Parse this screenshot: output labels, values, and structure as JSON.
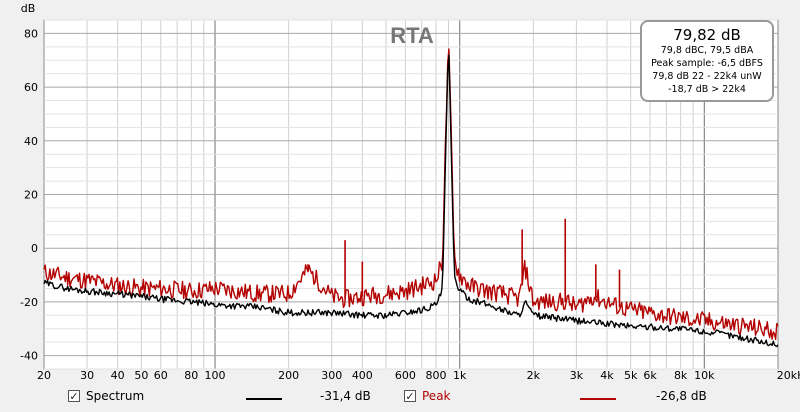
{
  "chart_data": {
    "type": "line",
    "title": "RTA",
    "ylabel": "dB",
    "xlabel": "",
    "x_scale": "log",
    "xlim": [
      20,
      20000
    ],
    "ylim": [
      -45,
      85
    ],
    "grid": true,
    "y_ticks": [
      "80",
      "60",
      "40",
      "20",
      "0",
      "-20",
      "-40"
    ],
    "x_ticks": [
      {
        "f": 20,
        "label": "20"
      },
      {
        "f": 30,
        "label": "30"
      },
      {
        "f": 40,
        "label": "40"
      },
      {
        "f": 50,
        "label": "50"
      },
      {
        "f": 60,
        "label": "60"
      },
      {
        "f": 80,
        "label": "80"
      },
      {
        "f": 100,
        "label": "100"
      },
      {
        "f": 200,
        "label": "200"
      },
      {
        "f": 300,
        "label": "300"
      },
      {
        "f": 400,
        "label": "400"
      },
      {
        "f": 600,
        "label": "600"
      },
      {
        "f": 800,
        "label": "800"
      },
      {
        "f": 1000,
        "label": "1k"
      },
      {
        "f": 2000,
        "label": "2k"
      },
      {
        "f": 3000,
        "label": "3k"
      },
      {
        "f": 4000,
        "label": "4k"
      },
      {
        "f": 5000,
        "label": "5k"
      },
      {
        "f": 6000,
        "label": "6k"
      },
      {
        "f": 8000,
        "label": "8k"
      },
      {
        "f": 10000,
        "label": "10k"
      },
      {
        "f": 20000,
        "label": "20kHz"
      }
    ],
    "series": [
      {
        "name": "Spectrum",
        "color": "#000000",
        "x": [
          20,
          25,
          30,
          40,
          50,
          60,
          80,
          100,
          150,
          200,
          300,
          400,
          500,
          600,
          700,
          800,
          850,
          900,
          950,
          1000,
          1100,
          1300,
          1500,
          1750,
          1850,
          2000,
          3000,
          5000,
          8000,
          12000,
          20000
        ],
        "y": [
          -13,
          -15,
          -16,
          -17,
          -18,
          -19,
          -20,
          -21,
          -22,
          -24,
          -24,
          -25,
          -25,
          -24,
          -23,
          -21,
          -16,
          78,
          -10,
          -16,
          -19,
          -21,
          -23,
          -25,
          -20,
          -25,
          -27,
          -29,
          -30,
          -32,
          -36
        ]
      },
      {
        "name": "Peak",
        "color": "#b30000",
        "x": [
          20,
          25,
          30,
          40,
          50,
          60,
          80,
          100,
          150,
          200,
          240,
          300,
          340,
          400,
          500,
          600,
          700,
          800,
          850,
          900,
          950,
          1000,
          1100,
          1300,
          1500,
          1750,
          1850,
          2000,
          2750,
          3000,
          3500,
          4500,
          5000,
          8000,
          12000,
          20000
        ],
        "y": [
          -9,
          -11,
          -12,
          -14,
          -15,
          -15,
          -16,
          -15,
          -17,
          -17,
          -8,
          -18,
          -19,
          -18,
          -17,
          -16,
          -14,
          -12,
          -5,
          80,
          -4,
          -10,
          -14,
          -16,
          -17,
          -19,
          -7,
          -20,
          -20,
          -22,
          -18,
          -22,
          -23,
          -26,
          -28,
          -31
        ]
      }
    ],
    "peaks": [
      {
        "series": "Peak",
        "f": 900,
        "db": 80
      },
      {
        "series": "Peak",
        "f": 240,
        "db": -6
      },
      {
        "series": "Peak",
        "f": 340,
        "db": 3
      },
      {
        "series": "Peak",
        "f": 400,
        "db": -5
      },
      {
        "series": "Peak",
        "f": 1800,
        "db": 7
      },
      {
        "series": "Peak",
        "f": 2700,
        "db": 11
      },
      {
        "series": "Peak",
        "f": 3600,
        "db": -6
      },
      {
        "series": "Peak",
        "f": 4500,
        "db": -8
      }
    ]
  },
  "overlay": {
    "main": "79,82 dB",
    "line1": "79,8 dBC, 79,5 dBA",
    "line2": "Peak sample: -6,5 dBFS",
    "line3": "79,8 dB 22 - 22k4 unW",
    "line4": "-18,7 dB > 22k4"
  },
  "legend": {
    "spectrum": {
      "label": "Spectrum",
      "value": "-31,4 dB",
      "checked": "✓",
      "color": "#000000"
    },
    "peak": {
      "label": "Peak",
      "value": "-26,8 dB",
      "checked": "✓",
      "color": "#b30000"
    }
  }
}
